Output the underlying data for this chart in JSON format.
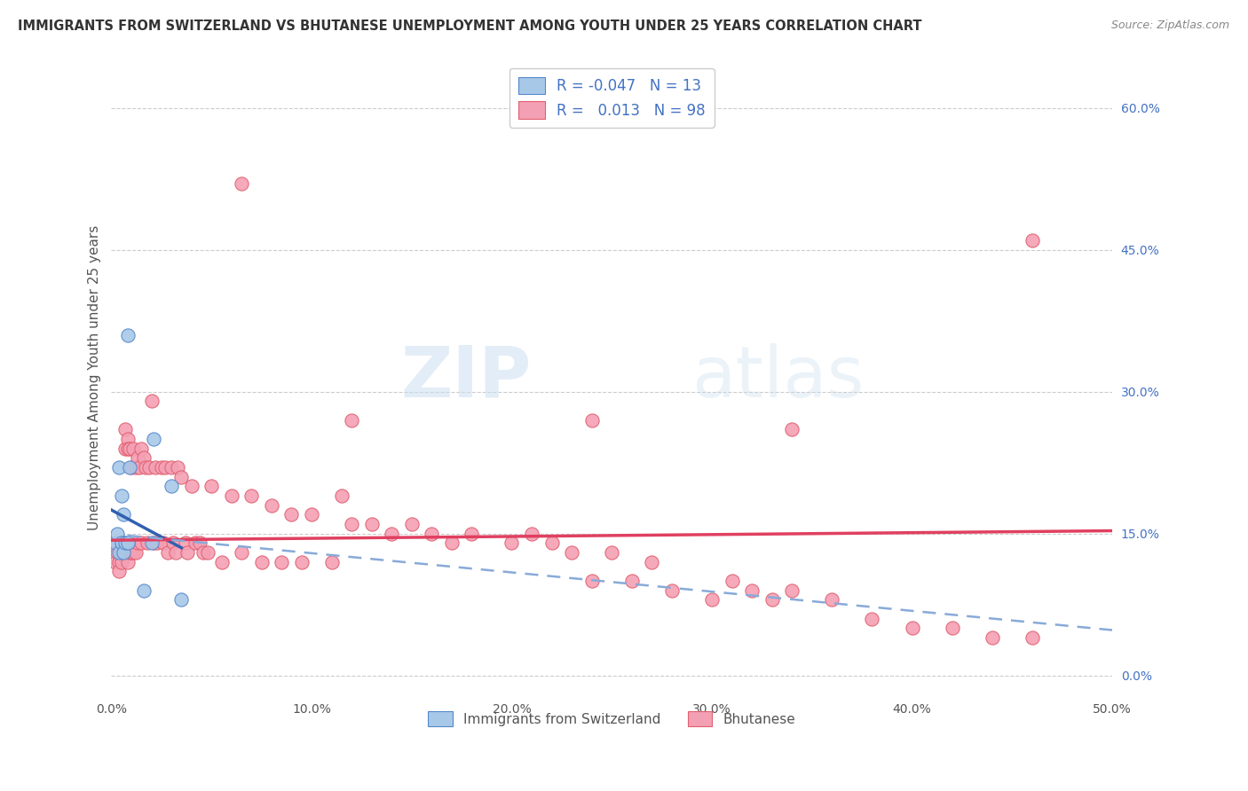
{
  "title": "IMMIGRANTS FROM SWITZERLAND VS BHUTANESE UNEMPLOYMENT AMONG YOUTH UNDER 25 YEARS CORRELATION CHART",
  "source": "Source: ZipAtlas.com",
  "ylabel": "Unemployment Among Youth under 25 years",
  "xlim": [
    0.0,
    0.5
  ],
  "ylim": [
    -0.02,
    0.65
  ],
  "right_yticks": [
    0.0,
    0.15,
    0.3,
    0.45,
    0.6
  ],
  "right_yticklabels": [
    "0.0%",
    "15.0%",
    "30.0%",
    "45.0%",
    "60.0%"
  ],
  "xticks": [
    0.0,
    0.1,
    0.2,
    0.3,
    0.4,
    0.5
  ],
  "xticklabels": [
    "0.0%",
    "10.0%",
    "20.0%",
    "30.0%",
    "40.0%",
    "50.0%"
  ],
  "color_swiss": "#a8c8e8",
  "color_bhutanese": "#f4a0b4",
  "color_swiss_edge": "#5588cc",
  "color_bhutanese_edge": "#e06070",
  "color_swiss_line": "#3060b0",
  "color_bhutanese_line": "#e04060",
  "color_dashed": "#88aad8",
  "watermark_zip": "ZIP",
  "watermark_atlas": "atlas",
  "swiss_scatter": {
    "x": [
      0.002,
      0.003,
      0.004,
      0.004,
      0.005,
      0.005,
      0.006,
      0.006,
      0.007,
      0.008,
      0.008,
      0.009,
      0.016,
      0.02,
      0.021,
      0.03,
      0.035
    ],
    "y": [
      0.14,
      0.15,
      0.13,
      0.22,
      0.19,
      0.14,
      0.17,
      0.13,
      0.14,
      0.36,
      0.14,
      0.22,
      0.09,
      0.14,
      0.25,
      0.2,
      0.08
    ]
  },
  "bhutanese_scatter": {
    "x": [
      0.002,
      0.003,
      0.003,
      0.004,
      0.004,
      0.005,
      0.005,
      0.005,
      0.006,
      0.006,
      0.007,
      0.007,
      0.007,
      0.008,
      0.008,
      0.008,
      0.009,
      0.009,
      0.01,
      0.01,
      0.011,
      0.011,
      0.012,
      0.012,
      0.013,
      0.013,
      0.014,
      0.015,
      0.015,
      0.016,
      0.017,
      0.018,
      0.019,
      0.02,
      0.021,
      0.022,
      0.023,
      0.025,
      0.026,
      0.027,
      0.028,
      0.03,
      0.031,
      0.032,
      0.033,
      0.035,
      0.037,
      0.038,
      0.04,
      0.042,
      0.044,
      0.046,
      0.048,
      0.05,
      0.055,
      0.06,
      0.065,
      0.07,
      0.075,
      0.08,
      0.085,
      0.09,
      0.095,
      0.1,
      0.11,
      0.115,
      0.12,
      0.13,
      0.14,
      0.15,
      0.16,
      0.17,
      0.18,
      0.2,
      0.21,
      0.22,
      0.23,
      0.24,
      0.25,
      0.26,
      0.27,
      0.28,
      0.3,
      0.31,
      0.32,
      0.33,
      0.34,
      0.36,
      0.38,
      0.4,
      0.42,
      0.44,
      0.46,
      0.065,
      0.24,
      0.46,
      0.34,
      0.12
    ],
    "y": [
      0.12,
      0.14,
      0.13,
      0.12,
      0.11,
      0.14,
      0.13,
      0.12,
      0.14,
      0.13,
      0.26,
      0.24,
      0.13,
      0.25,
      0.24,
      0.12,
      0.24,
      0.13,
      0.22,
      0.13,
      0.24,
      0.13,
      0.22,
      0.13,
      0.23,
      0.14,
      0.22,
      0.24,
      0.14,
      0.23,
      0.22,
      0.14,
      0.22,
      0.29,
      0.14,
      0.22,
      0.14,
      0.22,
      0.14,
      0.22,
      0.13,
      0.22,
      0.14,
      0.13,
      0.22,
      0.21,
      0.14,
      0.13,
      0.2,
      0.14,
      0.14,
      0.13,
      0.13,
      0.2,
      0.12,
      0.19,
      0.13,
      0.19,
      0.12,
      0.18,
      0.12,
      0.17,
      0.12,
      0.17,
      0.12,
      0.19,
      0.16,
      0.16,
      0.15,
      0.16,
      0.15,
      0.14,
      0.15,
      0.14,
      0.15,
      0.14,
      0.13,
      0.1,
      0.13,
      0.1,
      0.12,
      0.09,
      0.08,
      0.1,
      0.09,
      0.08,
      0.09,
      0.08,
      0.06,
      0.05,
      0.05,
      0.04,
      0.04,
      0.52,
      0.27,
      0.46,
      0.26,
      0.27
    ]
  },
  "swiss_line": {
    "x0": 0.0,
    "y0": 0.175,
    "x1": 0.035,
    "y1": 0.135
  },
  "bhu_line": {
    "x0": 0.0,
    "y0": 0.143,
    "x1": 0.5,
    "y1": 0.153
  },
  "dashed_line": {
    "x0": 0.008,
    "y0": 0.148,
    "x1": 0.5,
    "y1": 0.048
  }
}
